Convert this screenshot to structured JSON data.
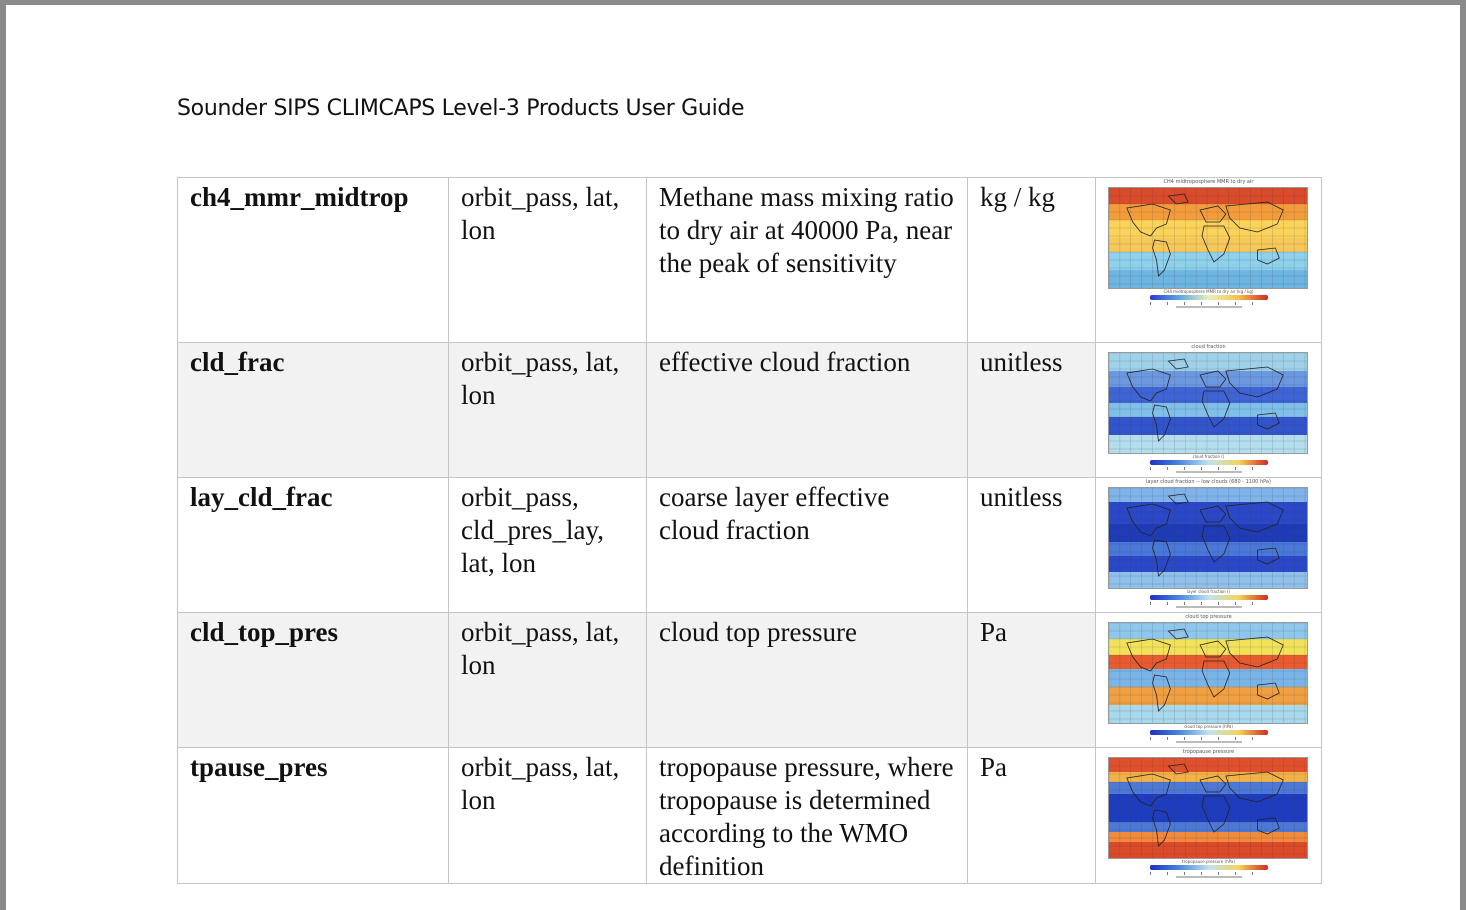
{
  "document": {
    "header": "Sounder SIPS CLIMCAPS Level-3 Products User Guide"
  },
  "rows": [
    {
      "name": "ch4_mmr_midtrop",
      "dims": "orbit_pass, lat, lon",
      "description": "Methane mass mixing ratio to dry air at 40000 Pa, near the peak of sensitivity",
      "units": "kg / kg",
      "thumbnail": {
        "title": "CH4 midtroposphere MMR to dry air",
        "colorbar_label": "CH4 midtroposphere MMR to dry air (kg / kg)",
        "palette": "warm"
      }
    },
    {
      "name": "cld_frac",
      "dims": "orbit_pass, lat, lon",
      "description": "effective cloud fraction",
      "units": "unitless",
      "thumbnail": {
        "title": "cloud fraction",
        "colorbar_label": "cloud fraction ()",
        "palette": "mixed"
      }
    },
    {
      "name": "lay_cld_frac",
      "dims": "orbit_pass, cld_pres_lay, lat, lon",
      "description": "coarse layer effective cloud fraction",
      "units": "unitless",
      "thumbnail": {
        "title": "layer cloud fraction -- low clouds (680 - 1100 hPa)",
        "colorbar_label": "layer cloud fraction ()",
        "palette": "cool"
      }
    },
    {
      "name": "cld_top_pres",
      "dims": "orbit_pass, lat, lon",
      "description": "cloud top pressure",
      "units": "Pa",
      "thumbnail": {
        "title": "cloud top pressure",
        "colorbar_label": "cloud top pressure (hPa)",
        "palette": "mixed-warm"
      }
    },
    {
      "name": "tpause_pres",
      "dims": "orbit_pass, lat, lon",
      "description": "tropopause pressure, where tropopause is determined according to the WMO definition",
      "units": "Pa",
      "thumbnail": {
        "title": "tropopause pressure",
        "colorbar_label": "tropopause pressure (hPa)",
        "palette": "banded"
      }
    }
  ]
}
